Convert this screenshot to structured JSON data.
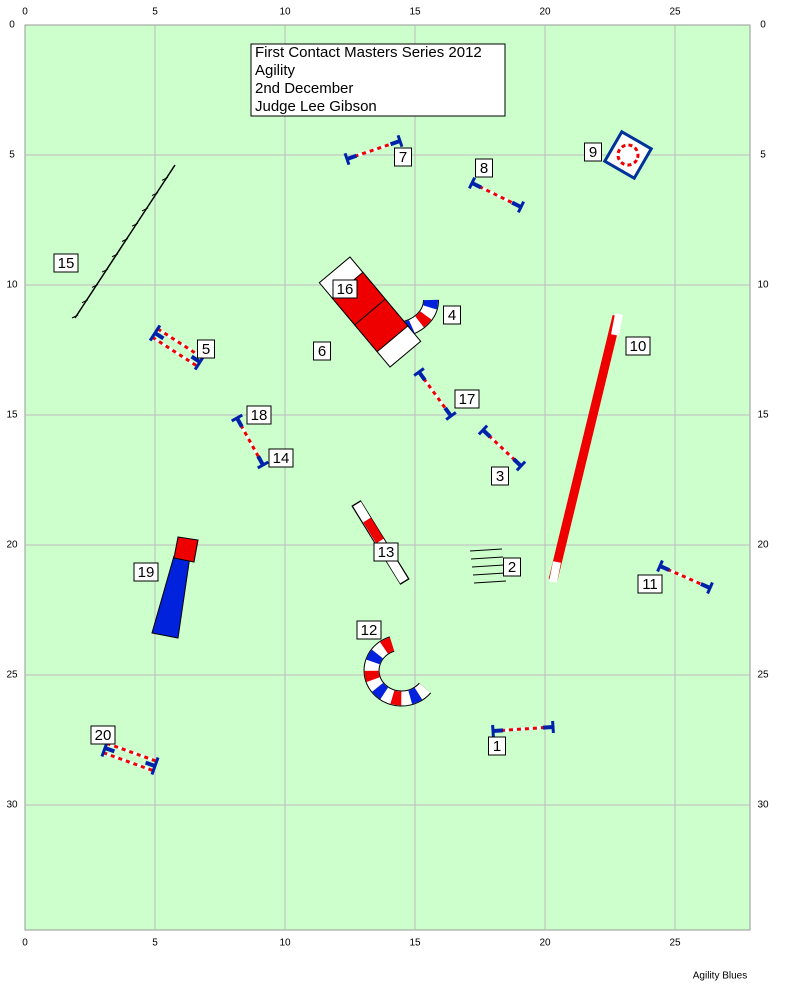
{
  "header": {
    "lines": [
      "First Contact Masters Series 2012",
      "Agility",
      "2nd December",
      "Judge Lee Gibson"
    ]
  },
  "axes": {
    "xticks": [
      0,
      5,
      10,
      15,
      20,
      25
    ],
    "yticks": [
      0,
      5,
      10,
      15,
      20,
      25,
      30
    ]
  },
  "obstacles": [
    "1",
    "2",
    "3",
    "4",
    "5",
    "6",
    "7",
    "8",
    "9",
    "10",
    "11",
    "12",
    "13",
    "14",
    "15",
    "16",
    "17",
    "18",
    "19",
    "20"
  ],
  "footer": "Agility Blues"
}
